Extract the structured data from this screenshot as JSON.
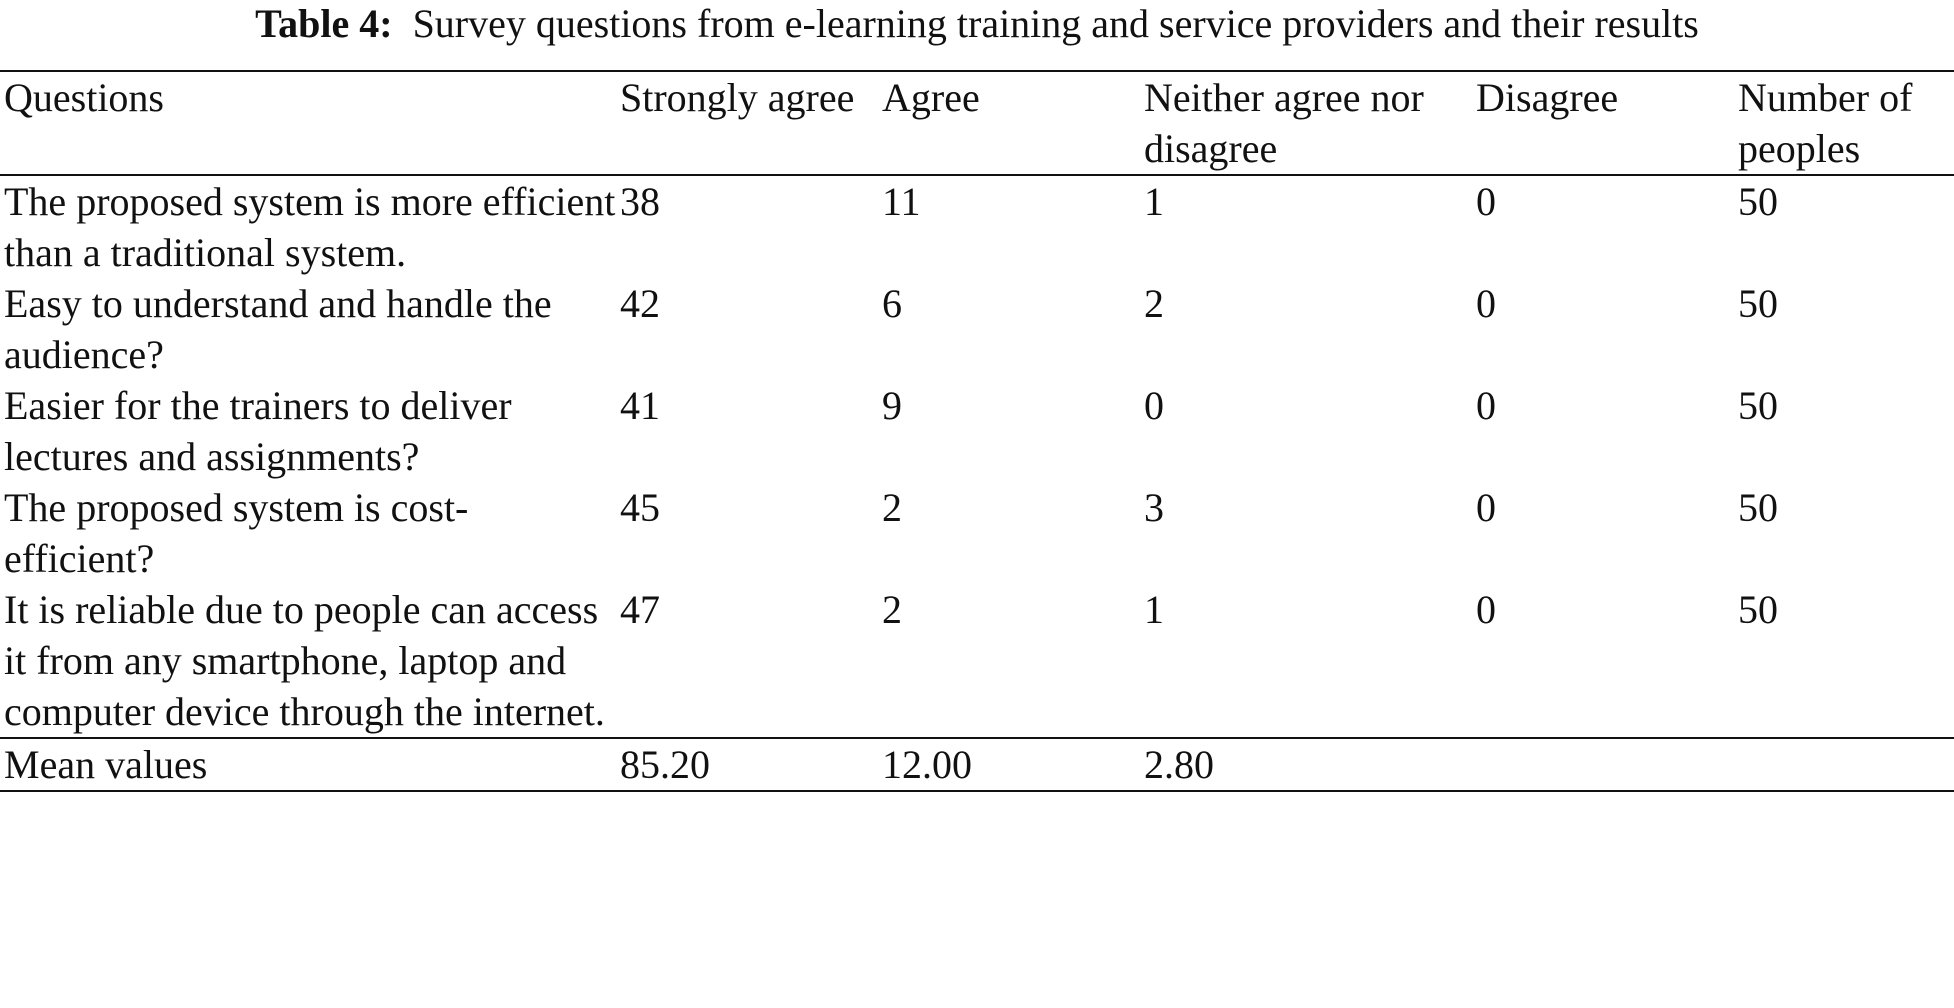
{
  "caption": {
    "label": "Table 4:",
    "text": "Survey questions from e-learning training and service providers and their results"
  },
  "headers": {
    "questions": "Questions",
    "strongly_agree": "Strongly agree",
    "agree": "Agree",
    "neither": "Neither agree nor disagree",
    "disagree": "Disagree",
    "number_of_peoples": "Number of peoples"
  },
  "rows": [
    {
      "question": "The proposed system is more efficient than a traditional system.",
      "strongly_agree": "38",
      "agree": "11",
      "neither": "1",
      "disagree": "0",
      "number": "50"
    },
    {
      "question": "Easy to understand and handle the audience?",
      "strongly_agree": "42",
      "agree": "6",
      "neither": "2",
      "disagree": "0",
      "number": "50"
    },
    {
      "question": "Easier for the trainers to deliver lectures and assignments?",
      "strongly_agree": "41",
      "agree": "9",
      "neither": "0",
      "disagree": "0",
      "number": "50"
    },
    {
      "question": "The proposed system is cost-efficient?",
      "strongly_agree": "45",
      "agree": "2",
      "neither": "3",
      "disagree": "0",
      "number": "50"
    },
    {
      "question": "It is reliable due to people can access it from any smartphone, laptop and computer device through the internet.",
      "strongly_agree": "47",
      "agree": "2",
      "neither": "1",
      "disagree": "0",
      "number": "50"
    }
  ],
  "footer": {
    "label": "Mean values",
    "strongly_agree": "85.20",
    "agree": "12.00",
    "neither": "2.80"
  }
}
